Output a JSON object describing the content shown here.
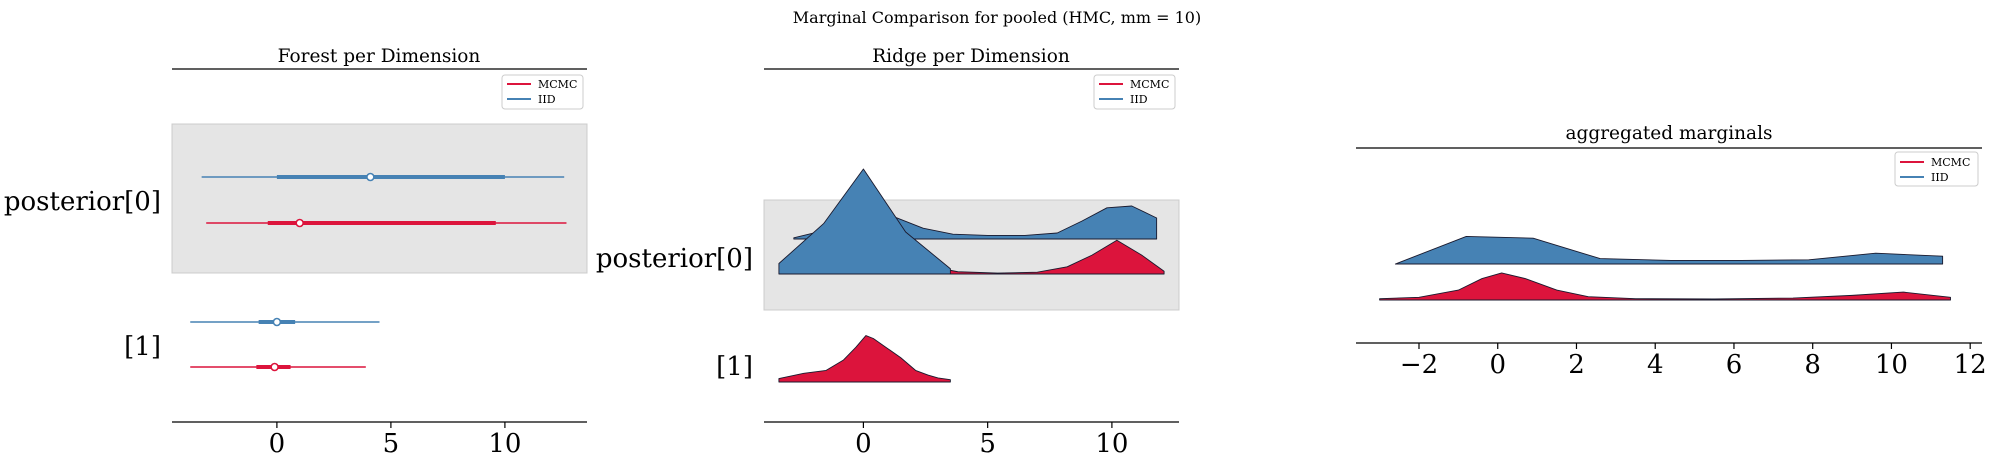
{
  "figure": {
    "suptitle": "Marginal Comparison for pooled (HMC, mm = 10)",
    "colors": {
      "MCMC": "#dc143c",
      "IID": "#4682b4",
      "band": "#e5e5e5"
    }
  },
  "chart_data": [
    {
      "type": "forest",
      "title": "Forest per Dimension",
      "legend": {
        "entries": [
          "MCMC",
          "IID"
        ],
        "position": "top-right"
      },
      "row_labels": [
        "posterior[0]",
        "[1]"
      ],
      "xticks": [
        0,
        5,
        10
      ],
      "xlim": [
        -4.6,
        13.6
      ],
      "rows": [
        {
          "label": "posterior[0]",
          "series": [
            {
              "name": "IID",
              "hdi_low": -3.3,
              "hdi_high": 12.6,
              "q_low": 0.0,
              "q_high": 10.0,
              "median": 4.1
            },
            {
              "name": "MCMC",
              "hdi_low": -3.1,
              "hdi_high": 12.7,
              "q_low": -0.4,
              "q_high": 9.6,
              "median": 1.0
            }
          ]
        },
        {
          "label": "[1]",
          "series": [
            {
              "name": "IID",
              "hdi_low": -3.8,
              "hdi_high": 4.5,
              "q_low": -0.8,
              "q_high": 0.8,
              "median": 0.0
            },
            {
              "name": "MCMC",
              "hdi_low": -3.8,
              "hdi_high": 3.9,
              "q_low": -0.9,
              "q_high": 0.6,
              "median": -0.1
            }
          ]
        }
      ]
    },
    {
      "type": "ridge",
      "title": "Ridge per Dimension",
      "legend": {
        "entries": [
          "MCMC",
          "IID"
        ],
        "position": "top-right"
      },
      "row_labels": [
        "posterior[0]",
        "[1]"
      ],
      "xticks": [
        0,
        5,
        10
      ],
      "xlim": [
        -4.0,
        12.7
      ],
      "rows": [
        {
          "label": "posterior[0]",
          "series": [
            {
              "name": "IID",
              "x": [
                -2.8,
                -1.8,
                -0.8,
                0.3,
                1.3,
                2.4,
                3.6,
                5.0,
                6.5,
                7.8,
                8.8,
                9.8,
                10.8,
                11.8
              ],
              "y": [
                0.02,
                0.12,
                0.32,
                0.5,
                0.36,
                0.18,
                0.08,
                0.06,
                0.06,
                0.1,
                0.3,
                0.52,
                0.55,
                0.35
              ]
            },
            {
              "name": "MCMC",
              "x": [
                -3.1,
                -2.0,
                -0.8,
                0.2,
                1.2,
                2.4,
                3.8,
                5.4,
                7.0,
                8.2,
                9.2,
                10.2,
                11.2,
                12.1
              ],
              "y": [
                0.03,
                0.1,
                0.32,
                0.68,
                0.52,
                0.2,
                0.05,
                0.02,
                0.04,
                0.16,
                0.42,
                0.75,
                0.42,
                0.06
              ]
            }
          ]
        },
        {
          "label": "[1]",
          "series": [
            {
              "name": "IID",
              "x": [
                -3.4,
                -1.6,
                0.0,
                1.7,
                3.5
              ],
              "y": [
                0.1,
                0.48,
                1.0,
                0.4,
                0.05
              ]
            },
            {
              "name": "MCMC",
              "x": [
                -3.4,
                -2.4,
                -1.5,
                -0.8,
                -0.3,
                0.1,
                0.4,
                0.9,
                1.5,
                2.1,
                2.6,
                3.0,
                3.5
              ],
              "y": [
                0.06,
                0.15,
                0.2,
                0.38,
                0.6,
                0.8,
                0.75,
                0.6,
                0.42,
                0.2,
                0.12,
                0.07,
                0.04
              ]
            }
          ]
        }
      ]
    },
    {
      "type": "area",
      "title": "aggregated marginals",
      "legend": {
        "entries": [
          "MCMC",
          "IID"
        ],
        "position": "top-right"
      },
      "xticks": [
        -2,
        0,
        2,
        4,
        6,
        8,
        10,
        12
      ],
      "xlim": [
        -3.6,
        12.3
      ],
      "series": [
        {
          "name": "IID",
          "x": [
            -2.6,
            -0.8,
            0.9,
            2.6,
            4.4,
            6.2,
            7.9,
            9.6,
            11.3
          ],
          "y": [
            0.0,
            0.92,
            0.86,
            0.18,
            0.12,
            0.12,
            0.14,
            0.36,
            0.26
          ]
        },
        {
          "name": "MCMC",
          "x": [
            -3.0,
            -2.0,
            -1.0,
            -0.4,
            0.1,
            0.7,
            1.5,
            2.3,
            3.5,
            5.5,
            7.5,
            9.0,
            10.3,
            11.5
          ],
          "y": [
            0.04,
            0.08,
            0.3,
            0.65,
            0.82,
            0.65,
            0.3,
            0.1,
            0.04,
            0.03,
            0.06,
            0.14,
            0.24,
            0.08
          ]
        }
      ]
    }
  ]
}
